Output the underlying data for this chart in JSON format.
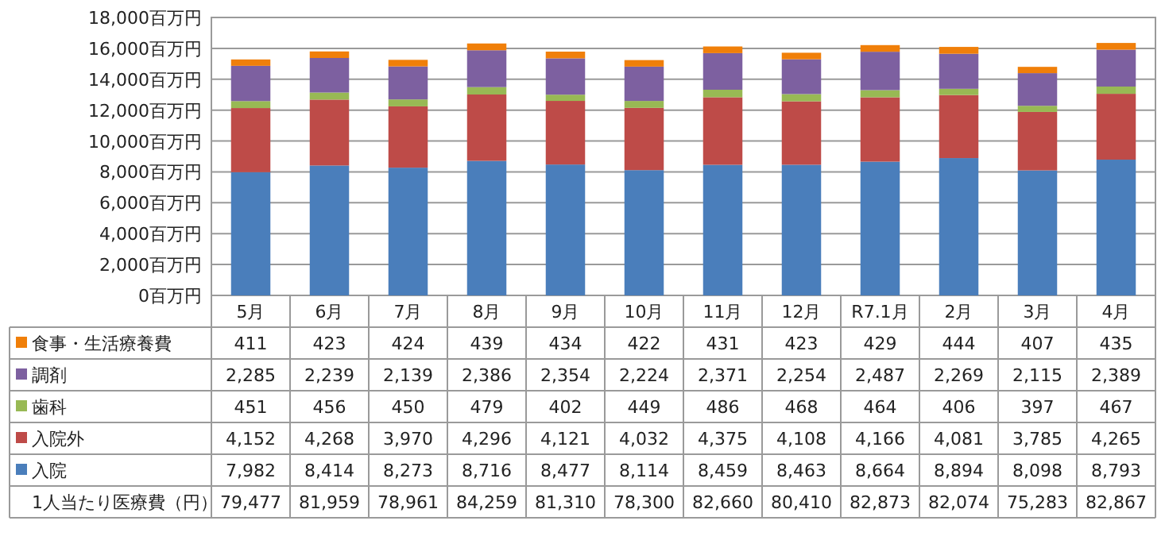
{
  "chart_data": [
    {
      "type": "bar",
      "stacked": true,
      "categories": [
        "5月",
        "6月",
        "7月",
        "8月",
        "9月",
        "10月",
        "11月",
        "12月",
        "R7.1月",
        "2月",
        "3月",
        "4月"
      ],
      "series": [
        {
          "name": "入院",
          "color": "#4a7ebb",
          "values": [
            7982,
            8414,
            8273,
            8716,
            8477,
            8114,
            8459,
            8463,
            8664,
            8894,
            8098,
            8793
          ],
          "value_labels": [
            "7,982",
            "8,414",
            "8,273",
            "8,716",
            "8,477",
            "8,114",
            "8,459",
            "8,463",
            "8,664",
            "8,894",
            "8,098",
            "8,793"
          ]
        },
        {
          "name": "入院外",
          "color": "#be4b48",
          "values": [
            4152,
            4268,
            3970,
            4296,
            4121,
            4032,
            4375,
            4108,
            4166,
            4081,
            3785,
            4265
          ],
          "value_labels": [
            "4,152",
            "4,268",
            "3,970",
            "4,296",
            "4,121",
            "4,032",
            "4,375",
            "4,108",
            "4,166",
            "4,081",
            "3,785",
            "4,265"
          ]
        },
        {
          "name": "歯科",
          "color": "#98b954",
          "values": [
            451,
            456,
            450,
            479,
            402,
            449,
            486,
            468,
            464,
            406,
            397,
            467
          ],
          "value_labels": [
            "451",
            "456",
            "450",
            "479",
            "402",
            "449",
            "486",
            "468",
            "464",
            "406",
            "397",
            "467"
          ]
        },
        {
          "name": "調剤",
          "color": "#7d60a0",
          "values": [
            2285,
            2239,
            2139,
            2386,
            2354,
            2224,
            2371,
            2254,
            2487,
            2269,
            2115,
            2389
          ],
          "value_labels": [
            "2,285",
            "2,239",
            "2,139",
            "2,386",
            "2,354",
            "2,224",
            "2,371",
            "2,254",
            "2,487",
            "2,269",
            "2,115",
            "2,389"
          ]
        },
        {
          "name": "食事・生活療養費",
          "color": "#f07f09",
          "values": [
            411,
            423,
            424,
            439,
            434,
            422,
            431,
            423,
            429,
            444,
            407,
            435
          ],
          "value_labels": [
            "411",
            "423",
            "424",
            "439",
            "434",
            "422",
            "431",
            "423",
            "429",
            "444",
            "407",
            "435"
          ]
        }
      ],
      "ylim": [
        0,
        18000
      ],
      "yticks": [
        {
          "value": 0,
          "label": "0百万円"
        },
        {
          "value": 2000,
          "label": "2,000百万円"
        },
        {
          "value": 4000,
          "label": "4,000百万円"
        },
        {
          "value": 6000,
          "label": "6,000百万円"
        },
        {
          "value": 8000,
          "label": "8,000百万円"
        },
        {
          "value": 10000,
          "label": "10,000百万円"
        },
        {
          "value": 12000,
          "label": "12,000百万円"
        },
        {
          "value": 14000,
          "label": "14,000百万円"
        },
        {
          "value": 16000,
          "label": "16,000百万円"
        },
        {
          "value": 18000,
          "label": "18,000百万円"
        }
      ],
      "grid": "y",
      "legend": "bottom"
    },
    {
      "type": "other",
      "title": "1人当たり医療費（円）",
      "annotations": [
        "79,477",
        "81,959",
        "78,961",
        "84,259",
        "81,310",
        "78,300",
        "82,660",
        "80,410",
        "82,873",
        "82,074",
        "75,283",
        "82,867"
      ]
    }
  ]
}
